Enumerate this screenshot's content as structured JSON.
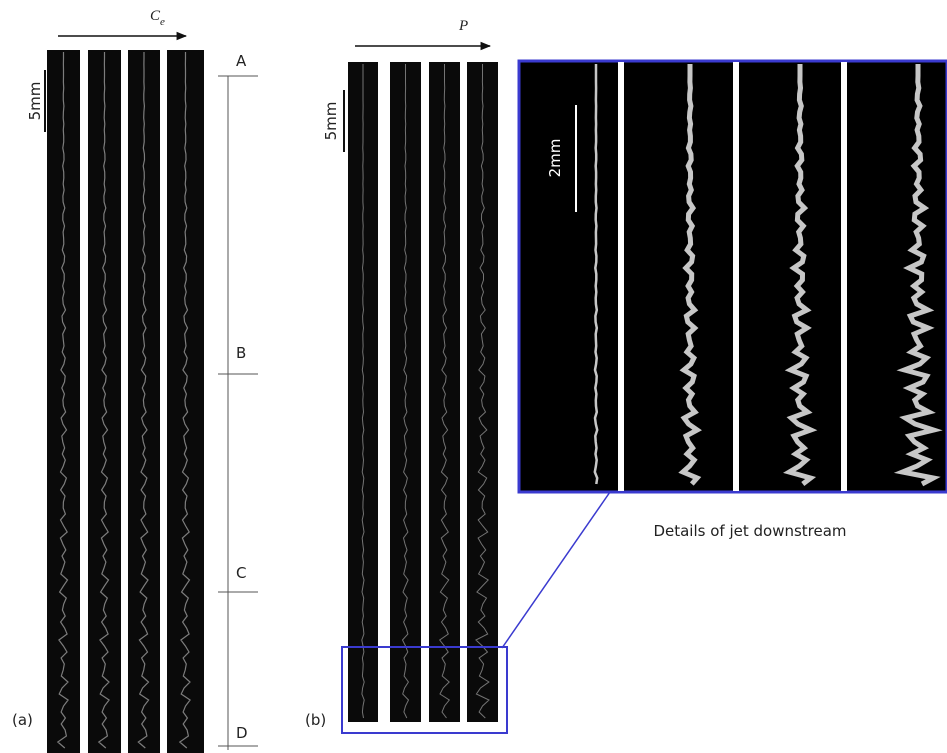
{
  "panel_a": {
    "arrow_label": "C",
    "arrow_label_sub": "e",
    "scale_label": "5mm",
    "markers": [
      "A",
      "B",
      "C",
      "D"
    ],
    "label": "(a)"
  },
  "panel_b": {
    "arrow_label": "P",
    "scale_label": "5mm",
    "label": "(b)"
  },
  "inset": {
    "scale_label": "2mm",
    "caption": "Details of jet downstream"
  }
}
